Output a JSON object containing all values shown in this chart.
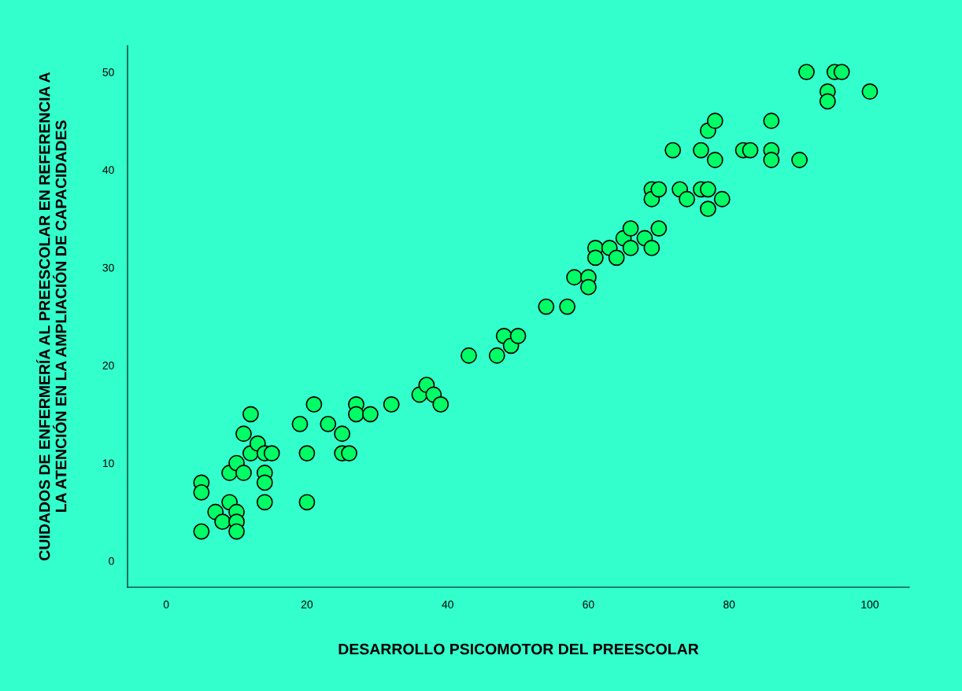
{
  "chart_data": {
    "type": "scatter",
    "xlabel": "DESARROLLO PSICOMOTOR DEL PREESCOLAR",
    "ylabel": "CUIDADOS DE ENFERMERÍA AL PREESCOLAR EN REFERENCIA A\nLA ATENCIÓN EN LA AMPLIACIÓN DE CAPACIDADES",
    "x": [
      5,
      5,
      5,
      7,
      8,
      9,
      9,
      10,
      10,
      10,
      10,
      11,
      11,
      12,
      12,
      13,
      14,
      14,
      14,
      14,
      15,
      19,
      20,
      20,
      21,
      23,
      25,
      25,
      26,
      27,
      27,
      29,
      32,
      36,
      37,
      38,
      39,
      43,
      47,
      48,
      49,
      50,
      54,
      57,
      58,
      60,
      60,
      61,
      61,
      63,
      64,
      65,
      66,
      66,
      68,
      69,
      69,
      69,
      70,
      70,
      72,
      73,
      74,
      76,
      76,
      77,
      77,
      77,
      78,
      78,
      79,
      82,
      83,
      86,
      86,
      86,
      90,
      91,
      94,
      94,
      95,
      96,
      100
    ],
    "series": [
      {
        "color": "#00ff66",
        "values": [
          8,
          7,
          3,
          5,
          4,
          6,
          9,
          10,
          5,
          4,
          3,
          13,
          9,
          15,
          11,
          12,
          11,
          9,
          8,
          6,
          11,
          14,
          11,
          6,
          16,
          14,
          13,
          11,
          11,
          16,
          15,
          15,
          16,
          17,
          18,
          17,
          16,
          21,
          21,
          23,
          22,
          23,
          26,
          26,
          29,
          29,
          28,
          32,
          31,
          32,
          31,
          33,
          34,
          32,
          33,
          32,
          38,
          37,
          38,
          34,
          42,
          38,
          37,
          42,
          38,
          44,
          38,
          36,
          45,
          41,
          37,
          42,
          42,
          45,
          42,
          41,
          41,
          50,
          48,
          47,
          50,
          50,
          48
        ]
      }
    ],
    "xlim": [
      -5.5,
      105.6
    ],
    "ylim": [
      -2.7,
      52.7
    ],
    "xticks": [
      0,
      20,
      40,
      60,
      80,
      100
    ],
    "yticks": [
      0,
      10,
      20,
      30,
      40,
      50
    ],
    "marker": "circle",
    "grid": false,
    "legend": false
  }
}
